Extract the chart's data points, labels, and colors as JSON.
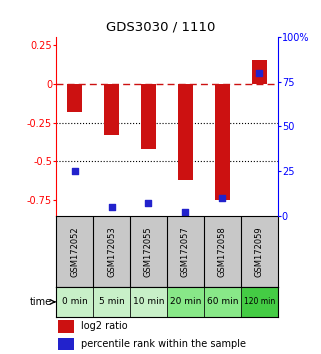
{
  "title": "GDS3030 / 1110",
  "samples": [
    "GSM172052",
    "GSM172053",
    "GSM172055",
    "GSM172057",
    "GSM172058",
    "GSM172059"
  ],
  "times": [
    "0 min",
    "5 min",
    "10 min",
    "20 min",
    "60 min",
    "120 min"
  ],
  "log2_ratios": [
    -0.18,
    -0.33,
    -0.42,
    -0.62,
    -0.75,
    0.15
  ],
  "percentile_ranks": [
    25,
    5,
    7,
    2,
    10,
    80
  ],
  "ylim_left": [
    -0.85,
    0.3
  ],
  "ylim_right": [
    0,
    100
  ],
  "bar_color": "#cc1111",
  "dot_color": "#2222cc",
  "hline_color": "#cc1111",
  "dotted_lines": [
    -0.25,
    -0.5
  ],
  "right_ticks": [
    0,
    25,
    50,
    75,
    100
  ],
  "right_tick_labels": [
    "0",
    "25",
    "50",
    "75",
    "100%"
  ],
  "left_ticks": [
    0.25,
    0,
    -0.25,
    -0.5,
    -0.75
  ],
  "left_tick_labels": [
    "0.25",
    "0",
    "-0.25",
    "-0.5",
    "-0.75"
  ],
  "background_color": "#ffffff",
  "sample_bg": "#c8c8c8",
  "time_bg_light": "#c8f0c8",
  "time_bg_medium": "#88e888",
  "time_bg_dark": "#44cc44",
  "time_bgs": [
    "#c8f0c8",
    "#c8f0c8",
    "#c8f0c8",
    "#88e888",
    "#88e888",
    "#44cc44"
  ],
  "legend_log2": "log2 ratio",
  "legend_pct": "percentile rank within the sample"
}
